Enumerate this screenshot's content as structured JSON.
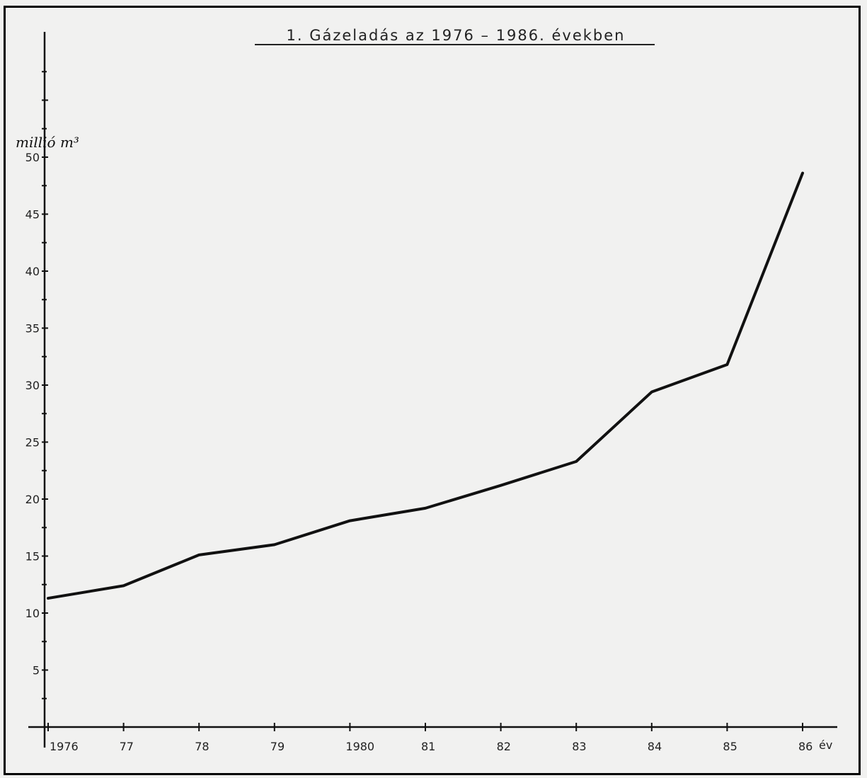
{
  "chart_data": {
    "type": "line",
    "title": "1. Gázeladás az 1976 – 1986. években",
    "ylabel": "millió m³",
    "xlabel": "év",
    "x_tick_labels": [
      "1976",
      "77",
      "78",
      "79",
      "1980",
      "81",
      "82",
      "83",
      "84",
      "85",
      "86"
    ],
    "y_ticks": [
      5,
      10,
      15,
      20,
      25,
      30,
      35,
      40,
      45,
      50
    ],
    "ylim": [
      0,
      50
    ],
    "grid": false,
    "series": [
      {
        "values": [
          11.3,
          12.4,
          15.1,
          16.0,
          18.1,
          19.2,
          21.2,
          23.3,
          29.4,
          31.8,
          48.6
        ]
      }
    ]
  },
  "colors": {
    "paper": "#f1f1f0",
    "ink": "#111111"
  }
}
